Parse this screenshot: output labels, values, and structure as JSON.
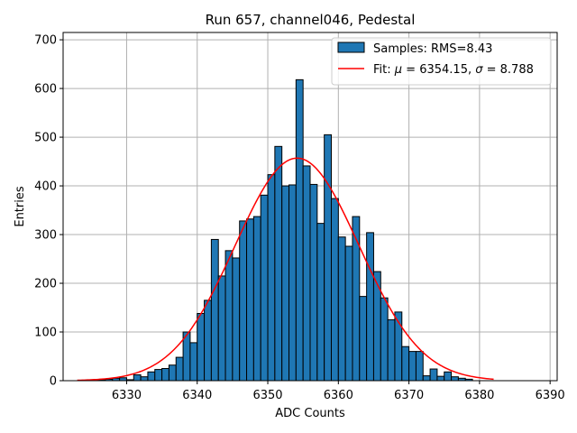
{
  "chart_data": {
    "type": "bar",
    "title": "Run 657, channel046, Pedestal",
    "xlabel": "ADC Counts",
    "ylabel": "Entries",
    "xlim": [
      6321,
      6391
    ],
    "ylim": [
      0,
      715
    ],
    "xticks": [
      6330,
      6340,
      6350,
      6360,
      6370,
      6380,
      6390
    ],
    "yticks": [
      0,
      100,
      200,
      300,
      400,
      500,
      600,
      700
    ],
    "grid": true,
    "legend_placement": "top-right",
    "histogram": {
      "name": "Samples: RMS=8.43",
      "bin_width": 1,
      "bin_edges_start": 6323,
      "values": [
        0,
        0,
        1,
        2,
        3,
        5,
        6,
        2,
        12,
        8,
        18,
        23,
        25,
        32,
        48,
        100,
        78,
        138,
        165,
        290,
        215,
        267,
        252,
        328,
        332,
        337,
        381,
        423,
        481,
        400,
        402,
        618,
        441,
        403,
        323,
        505,
        374,
        295,
        276,
        337,
        173,
        304,
        224,
        170,
        125,
        141,
        70,
        60,
        60,
        10,
        24,
        9,
        18,
        8,
        5,
        3,
        0,
        0,
        0,
        0,
        0,
        0,
        0,
        0,
        0
      ],
      "fill_color": "#1f77b4",
      "edge_color": "#000000"
    },
    "fit": {
      "name": "Fit: μ = 6354.15, σ = 8.788",
      "name_parts": [
        "Fit: ",
        "μ",
        " = 6354.15, ",
        "σ",
        " = 8.788"
      ],
      "mu": 6354.15,
      "sigma": 8.788,
      "amplitude": 457,
      "x_range": [
        6323,
        6382
      ],
      "color": "#ff0000"
    }
  }
}
